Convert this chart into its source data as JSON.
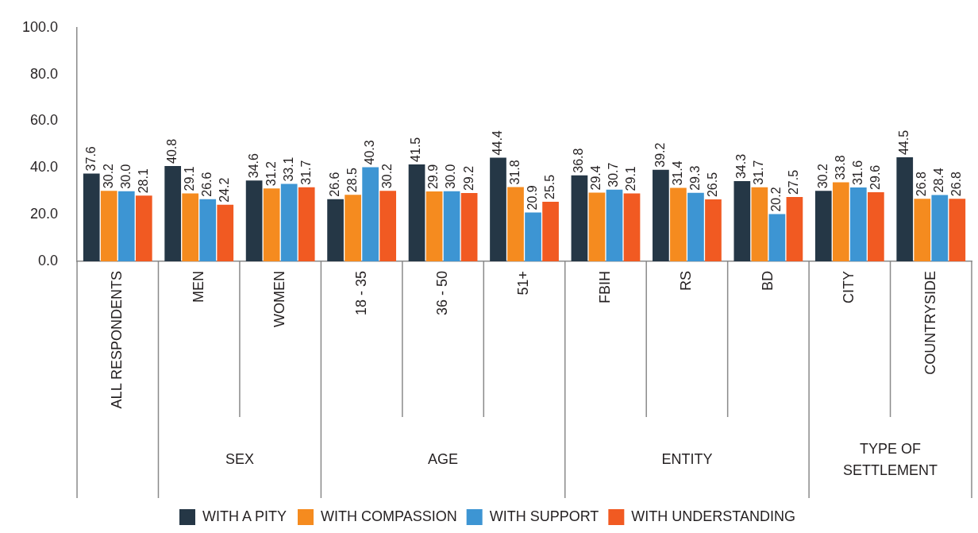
{
  "chart_data": {
    "type": "bar",
    "categories": [
      "ALL RESPONDENTS",
      "MEN",
      "WOMEN",
      "18 - 35",
      "36 - 50",
      "51+",
      "FBIH",
      "RS",
      "BD",
      "CITY",
      "COUNTRYSIDE"
    ],
    "series": [
      {
        "name": "WITH A PITY",
        "color": "#253746",
        "values": [
          37.6,
          40.8,
          34.6,
          26.6,
          41.5,
          44.4,
          36.8,
          39.2,
          34.3,
          30.2,
          44.5
        ],
        "value_labels": [
          "37.6",
          "40.8",
          "34.6",
          "26.6",
          "41.5",
          "44.4",
          "36.8",
          "39.2",
          "34.3",
          "30.2",
          "44.5"
        ]
      },
      {
        "name": "WITH COMPASSION",
        "color": "#f58b1f",
        "values": [
          30.2,
          29.1,
          31.2,
          28.5,
          29.9,
          31.8,
          29.4,
          31.4,
          31.7,
          33.8,
          26.8
        ],
        "value_labels": [
          "30.2",
          "29.1",
          "31.2",
          "28.5",
          "29.9",
          "31.8",
          "29.4",
          "31.4",
          "31.7",
          "33.8",
          "26.8"
        ]
      },
      {
        "name": "WITH SUPPORT",
        "color": "#3d95d3",
        "values": [
          30.0,
          26.6,
          33.1,
          40.3,
          30.0,
          20.9,
          30.7,
          29.3,
          20.2,
          31.6,
          28.4
        ],
        "value_labels": [
          "30.0",
          "26.6",
          "33.1",
          "40.3",
          "30.0",
          "20.9",
          "30.7",
          "29.3",
          "20.2",
          "31.6",
          "28.4"
        ]
      },
      {
        "name": "WITH UNDERSTANDING",
        "color": "#f15a22",
        "values": [
          28.1,
          24.2,
          31.7,
          30.2,
          29.2,
          25.5,
          29.1,
          26.5,
          27.5,
          29.6,
          26.8
        ],
        "value_labels": [
          "28.1",
          "24.2",
          "31.7",
          "30.2",
          "29.2",
          "25.5",
          "29.1",
          "26.5",
          "27.5",
          "29.6",
          "26.8"
        ]
      }
    ],
    "annotations": [
      "SEX",
      "AGE",
      "ENTITY",
      "TYPE OF SETTLEMENT"
    ],
    "ylim": [
      0,
      100
    ],
    "yticks": [
      {
        "value": 0,
        "label": "0.0"
      },
      {
        "value": 20,
        "label": "20.0"
      },
      {
        "value": 40,
        "label": "40.0"
      },
      {
        "value": 60,
        "label": "60.0"
      },
      {
        "value": 80,
        "label": "80.0"
      },
      {
        "value": 100,
        "label": "100.0"
      }
    ],
    "grid": false,
    "legend": "bottom"
  }
}
